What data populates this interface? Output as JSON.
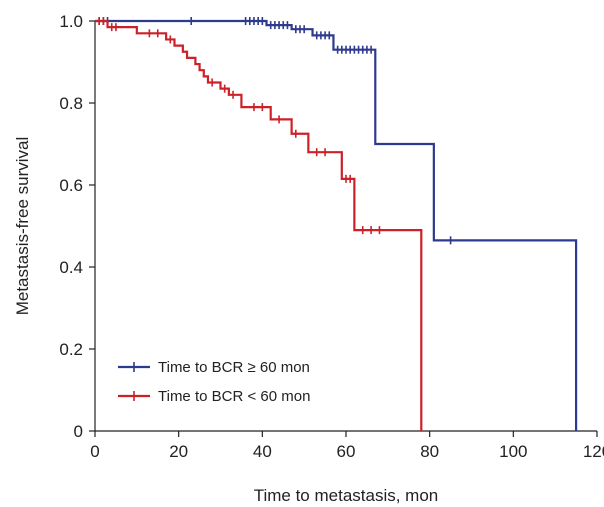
{
  "chart_data": {
    "type": "line",
    "subtype": "kaplan-meier step",
    "title": "",
    "xlabel": "Time to metastasis, mon",
    "ylabel": "Metastasis-free survival",
    "xlim": [
      0,
      120
    ],
    "ylim": [
      0,
      1.0
    ],
    "x_ticks": [
      0,
      20,
      40,
      60,
      80,
      100,
      120
    ],
    "x_tick_labels": [
      "0",
      "20",
      "40",
      "60",
      "80",
      "100",
      "120"
    ],
    "y_ticks": [
      0,
      0.2,
      0.4,
      0.6,
      0.8,
      1.0
    ],
    "y_tick_labels": [
      "0",
      "0.2",
      "0.4",
      "0.6",
      "0.8",
      "1.0"
    ],
    "grid": false,
    "legend_position": "bottom-left",
    "series": [
      {
        "name": "Time to BCR ≥ 60 mon",
        "color": "#2e3a8c",
        "steps": [
          [
            0,
            1.0
          ],
          [
            41,
            0.99
          ],
          [
            47,
            0.98
          ],
          [
            52,
            0.965
          ],
          [
            57,
            0.93
          ],
          [
            67,
            0.7
          ],
          [
            81,
            0.465
          ],
          [
            115,
            0.0
          ]
        ],
        "censored": [
          [
            1,
            1.0
          ],
          [
            2,
            1.0
          ],
          [
            3,
            1.0
          ],
          [
            23,
            1.0
          ],
          [
            36,
            1.0
          ],
          [
            37,
            1.0
          ],
          [
            38,
            1.0
          ],
          [
            39,
            1.0
          ],
          [
            40,
            1.0
          ],
          [
            42,
            0.99
          ],
          [
            43,
            0.99
          ],
          [
            44,
            0.99
          ],
          [
            45,
            0.99
          ],
          [
            46,
            0.99
          ],
          [
            48,
            0.98
          ],
          [
            49,
            0.98
          ],
          [
            50,
            0.98
          ],
          [
            53,
            0.965
          ],
          [
            54,
            0.965
          ],
          [
            55,
            0.965
          ],
          [
            56,
            0.965
          ],
          [
            58,
            0.93
          ],
          [
            59,
            0.93
          ],
          [
            60,
            0.93
          ],
          [
            61,
            0.93
          ],
          [
            62,
            0.93
          ],
          [
            63,
            0.93
          ],
          [
            64,
            0.93
          ],
          [
            65,
            0.93
          ],
          [
            66,
            0.93
          ],
          [
            85,
            0.465
          ]
        ]
      },
      {
        "name": "Time to BCR < 60 mon",
        "color": "#cc2128",
        "steps": [
          [
            0,
            1.0
          ],
          [
            3,
            0.985
          ],
          [
            10,
            0.97
          ],
          [
            17,
            0.955
          ],
          [
            19,
            0.94
          ],
          [
            21,
            0.925
          ],
          [
            22,
            0.91
          ],
          [
            24,
            0.895
          ],
          [
            25,
            0.88
          ],
          [
            26,
            0.865
          ],
          [
            27,
            0.85
          ],
          [
            30,
            0.835
          ],
          [
            32,
            0.82
          ],
          [
            35,
            0.79
          ],
          [
            42,
            0.76
          ],
          [
            47,
            0.725
          ],
          [
            51,
            0.68
          ],
          [
            59,
            0.615
          ],
          [
            62,
            0.49
          ],
          [
            78,
            0.0
          ]
        ],
        "censored": [
          [
            1,
            1.0
          ],
          [
            2,
            1.0
          ],
          [
            4,
            0.985
          ],
          [
            5,
            0.985
          ],
          [
            13,
            0.97
          ],
          [
            15,
            0.97
          ],
          [
            18,
            0.955
          ],
          [
            28,
            0.85
          ],
          [
            31,
            0.835
          ],
          [
            33,
            0.82
          ],
          [
            38,
            0.79
          ],
          [
            40,
            0.79
          ],
          [
            44,
            0.76
          ],
          [
            48,
            0.725
          ],
          [
            53,
            0.68
          ],
          [
            55,
            0.68
          ],
          [
            60,
            0.615
          ],
          [
            61,
            0.615
          ],
          [
            64,
            0.49
          ],
          [
            66,
            0.49
          ],
          [
            68,
            0.49
          ]
        ]
      }
    ]
  }
}
